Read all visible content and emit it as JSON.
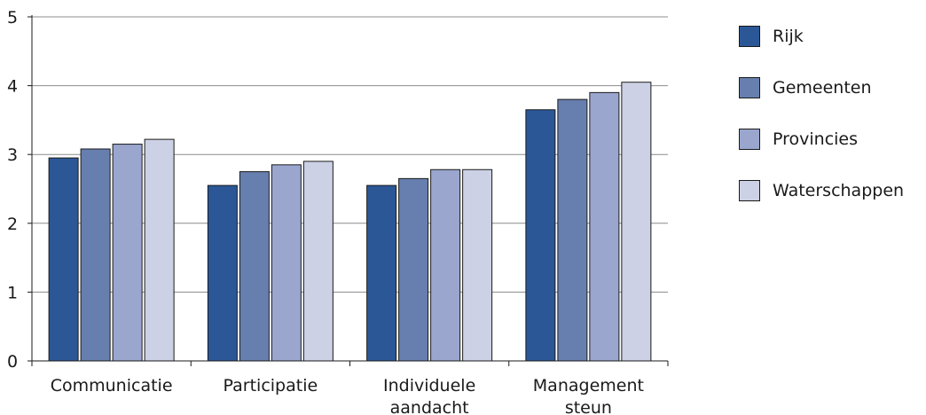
{
  "chart_data": {
    "type": "bar",
    "categories": [
      [
        "Communicatie"
      ],
      [
        "Participatie"
      ],
      [
        "Individuele",
        "aandacht"
      ],
      [
        "Management",
        "steun"
      ]
    ],
    "series": [
      {
        "name": "Rijk",
        "color": "#2b5797",
        "values": [
          2.95,
          2.55,
          2.55,
          3.65
        ]
      },
      {
        "name": "Gemeenten",
        "color": "#677fae",
        "values": [
          3.08,
          2.75,
          2.65,
          3.8
        ]
      },
      {
        "name": "Provincies",
        "color": "#9aa6ce",
        "values": [
          3.15,
          2.85,
          2.78,
          3.9
        ]
      },
      {
        "name": "Waterschappen",
        "color": "#ccd1e5",
        "values": [
          3.22,
          2.9,
          2.78,
          4.05
        ]
      }
    ],
    "ylim": [
      0,
      5
    ],
    "yticks": [
      "0",
      "1",
      "2",
      "3",
      "4",
      "5"
    ],
    "grid": true,
    "legend_position": "right"
  }
}
